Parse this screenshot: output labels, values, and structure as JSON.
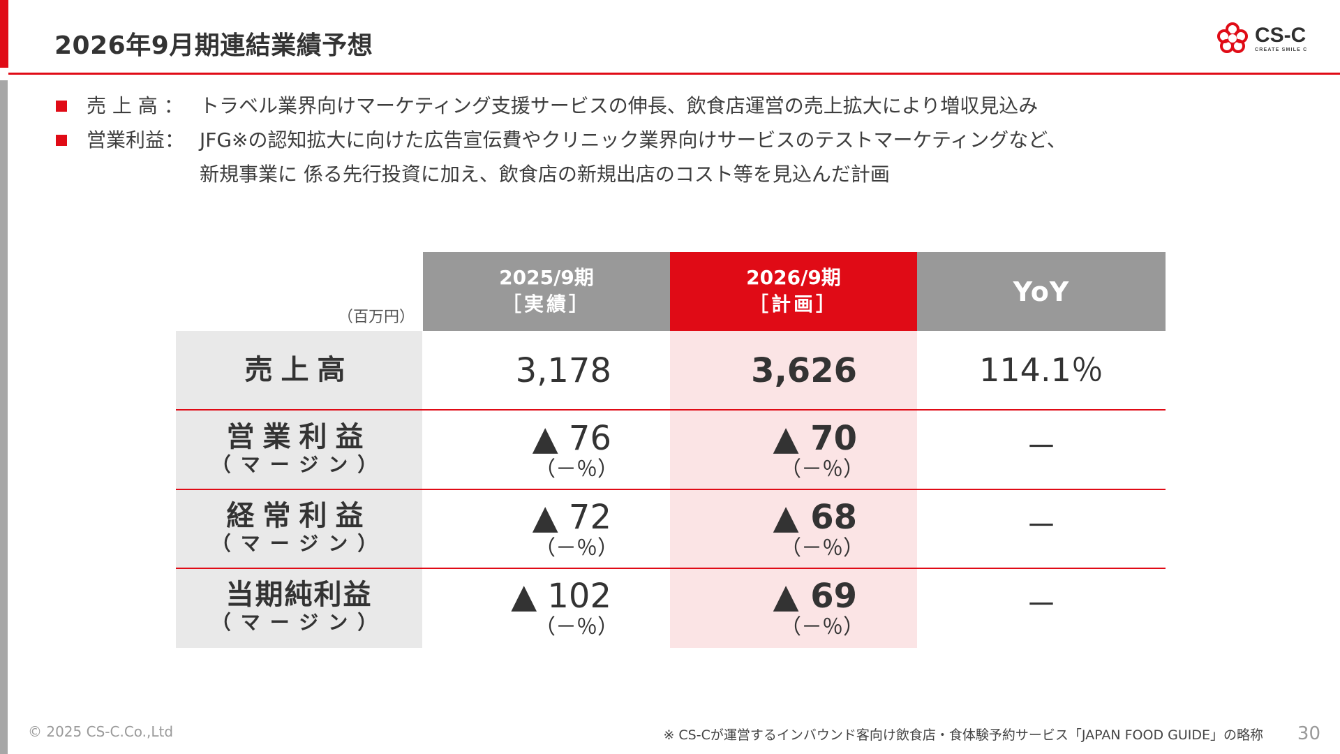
{
  "slide": {
    "title": "2026年9月期連結業績予想",
    "logo_text": "CS-C",
    "logo_sub": "CREATE SMILE C",
    "page_number": "30",
    "copyright": "© 2025 CS-C.Co.,Ltd",
    "footnote": "※ CS-Cが運営するインバウンド客向け飲食店・食体験予約サービス「JAPAN FOOD GUIDE」の略称"
  },
  "bullets": [
    {
      "label": "売 上 高 ：",
      "text": "トラベル業界向けマーケティング支援サービスの伸長、飲食店運営の売上拡大により増収見込み"
    },
    {
      "label": "営業利益：",
      "text": "JFG※の認知拡大に向けた広告宣伝費やクリニック業界向けサービスのテストマーケティングなど、"
    },
    {
      "label": "",
      "text": "新規事業に 係る先行投資に加え、飲食店の新規出店のコスト等を見込んだ計画"
    }
  ],
  "table": {
    "unit": "（百万円）",
    "headers": {
      "actual_line1": "2025/9期",
      "actual_line2": "［実績］",
      "plan_line1": "2026/9期",
      "plan_line2": "［計画］",
      "yoy": "YoY"
    },
    "rows": [
      {
        "label": "売上高",
        "sub": "",
        "actual": "3,178",
        "actual_margin": "",
        "plan": "3,626",
        "plan_margin": "",
        "yoy": "114.1％"
      },
      {
        "label": "営業利益",
        "sub": "（マージン）",
        "actual": "▲ 76",
        "actual_margin": "（－％）",
        "plan": "▲ 70",
        "plan_margin": "（－％）",
        "yoy": "－"
      },
      {
        "label": "経常利益",
        "sub": "（マージン）",
        "actual": "▲ 72",
        "actual_margin": "（－％）",
        "plan": "▲ 68",
        "plan_margin": "（－％）",
        "yoy": "－"
      },
      {
        "label": "当期純利益",
        "sub": "（マージン）",
        "actual": "▲ 102",
        "actual_margin": "（－％）",
        "plan": "▲ 69",
        "plan_margin": "（－％）",
        "yoy": "－"
      }
    ]
  },
  "colors": {
    "accent_red": "#e00b16",
    "header_gray": "#999999",
    "label_bg": "#e9e9e9",
    "plan_bg": "#fbe4e5"
  }
}
